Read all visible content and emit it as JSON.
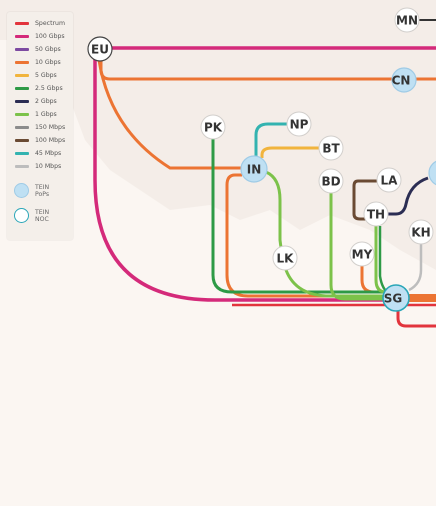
{
  "legend": {
    "speeds": [
      {
        "label": "Spectrum",
        "color": "#e2343d"
      },
      {
        "label": "100 Gbps",
        "color": "#d42a7a"
      },
      {
        "label": "50 Gbps",
        "color": "#7d4aa1"
      },
      {
        "label": "10 Gbps",
        "color": "#ec7433"
      },
      {
        "label": "5 Gbps",
        "color": "#f1b43d"
      },
      {
        "label": "2.5 Gbps",
        "color": "#2e9a46"
      },
      {
        "label": "2 Gbps",
        "color": "#2b2d53"
      },
      {
        "label": "1 Gbps",
        "color": "#7cc24a"
      },
      {
        "label": "150 Mbps",
        "color": "#8c8c8c"
      },
      {
        "label": "100 Mbps",
        "color": "#6a4a33"
      },
      {
        "label": "45 Mbps",
        "color": "#33b3b0"
      },
      {
        "label": "10 Mbps",
        "color": "#bdbdbd"
      }
    ],
    "pops_label": "TEIN PoPs",
    "noc_label": "TEIN NOC"
  },
  "nodes": {
    "mn": "MN",
    "eu": "EU",
    "cn": "CN",
    "np": "NP",
    "pk": "PK",
    "bt": "BT",
    "in": "IN",
    "bd": "BD",
    "la": "LA",
    "th": "TH",
    "kh": "KH",
    "lk": "LK",
    "my": "MY",
    "sg": "SG"
  },
  "colors": {
    "pop_fill": "#bfe0f3",
    "pop_stroke": "#9fcbe6",
    "noc_stroke": "#2aa6b8",
    "node_fill": "#ffffff",
    "node_stroke": "#d2cfcc"
  }
}
